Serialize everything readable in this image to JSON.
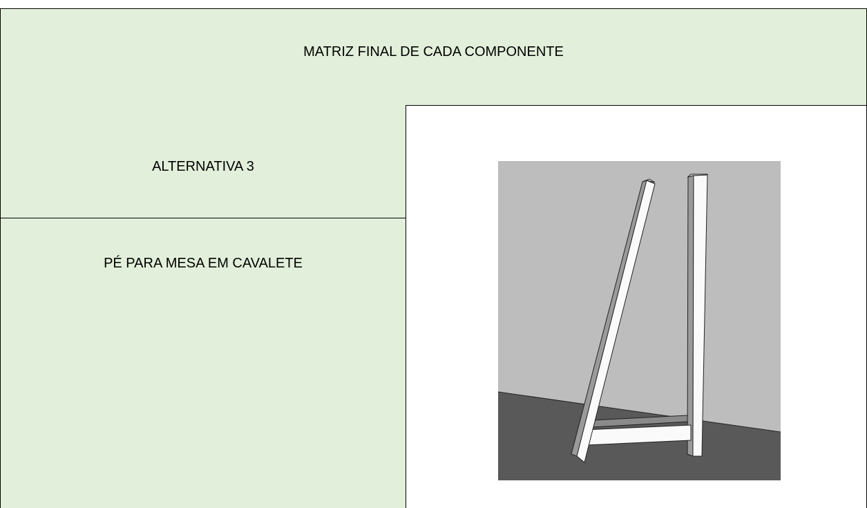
{
  "header": {
    "title": "MATRIZ FINAL DE CADA COMPONENTE"
  },
  "rows": [
    {
      "label": "ALTERNATIVA 3"
    },
    {
      "label": "PÉ PARA MESA EM CAVALETE"
    }
  ]
}
